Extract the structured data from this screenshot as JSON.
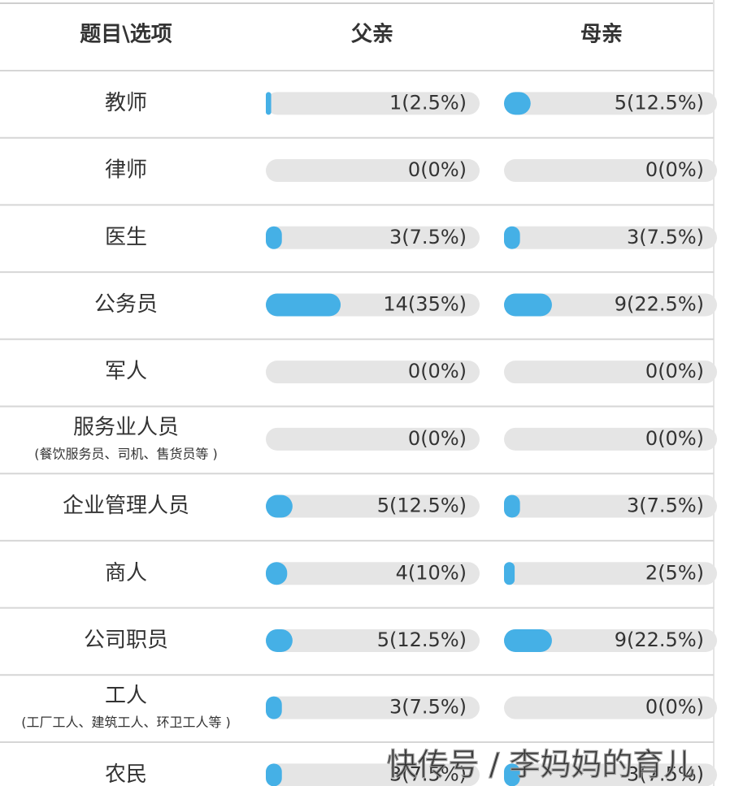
{
  "header": {
    "item": "题目\\选项",
    "father": "父亲",
    "mother": "母亲"
  },
  "rows": [
    {
      "name": "教师",
      "father": {
        "label": "1(2.5%)",
        "percent": 2.5
      },
      "mother": {
        "label": "5(12.5%)",
        "percent": 12.5
      }
    },
    {
      "name": "律师",
      "father": {
        "label": "0(0%)",
        "percent": 0
      },
      "mother": {
        "label": "0(0%)",
        "percent": 0
      }
    },
    {
      "name": "医生",
      "father": {
        "label": "3(7.5%)",
        "percent": 7.5
      },
      "mother": {
        "label": "3(7.5%)",
        "percent": 7.5
      }
    },
    {
      "name": "公务员",
      "father": {
        "label": "14(35%)",
        "percent": 35
      },
      "mother": {
        "label": "9(22.5%)",
        "percent": 22.5
      }
    },
    {
      "name": "军人",
      "father": {
        "label": "0(0%)",
        "percent": 0
      },
      "mother": {
        "label": "0(0%)",
        "percent": 0
      }
    },
    {
      "name": "服务业人员",
      "note": "(餐饮服务员、司机、售货员等 )",
      "father": {
        "label": "0(0%)",
        "percent": 0
      },
      "mother": {
        "label": "0(0%)",
        "percent": 0
      }
    },
    {
      "name": "企业管理人员",
      "father": {
        "label": "5(12.5%)",
        "percent": 12.5
      },
      "mother": {
        "label": "3(7.5%)",
        "percent": 7.5
      }
    },
    {
      "name": "商人",
      "father": {
        "label": "4(10%)",
        "percent": 10
      },
      "mother": {
        "label": "2(5%)",
        "percent": 5
      }
    },
    {
      "name": "公司职员",
      "father": {
        "label": "5(12.5%)",
        "percent": 12.5
      },
      "mother": {
        "label": "9(22.5%)",
        "percent": 22.5
      }
    },
    {
      "name": "工人",
      "note": "(工厂工人、建筑工人、环卫工人等 )",
      "father": {
        "label": "3(7.5%)",
        "percent": 7.5
      },
      "mother": {
        "label": "0(0%)",
        "percent": 0
      }
    },
    {
      "name": "农民",
      "father": {
        "label": "3(7.5%)",
        "percent": 7.5
      },
      "mother": {
        "label": "3(7.5%)",
        "percent": 7.5
      }
    }
  ],
  "watermark": "快传号 / 李妈妈的育儿"
}
